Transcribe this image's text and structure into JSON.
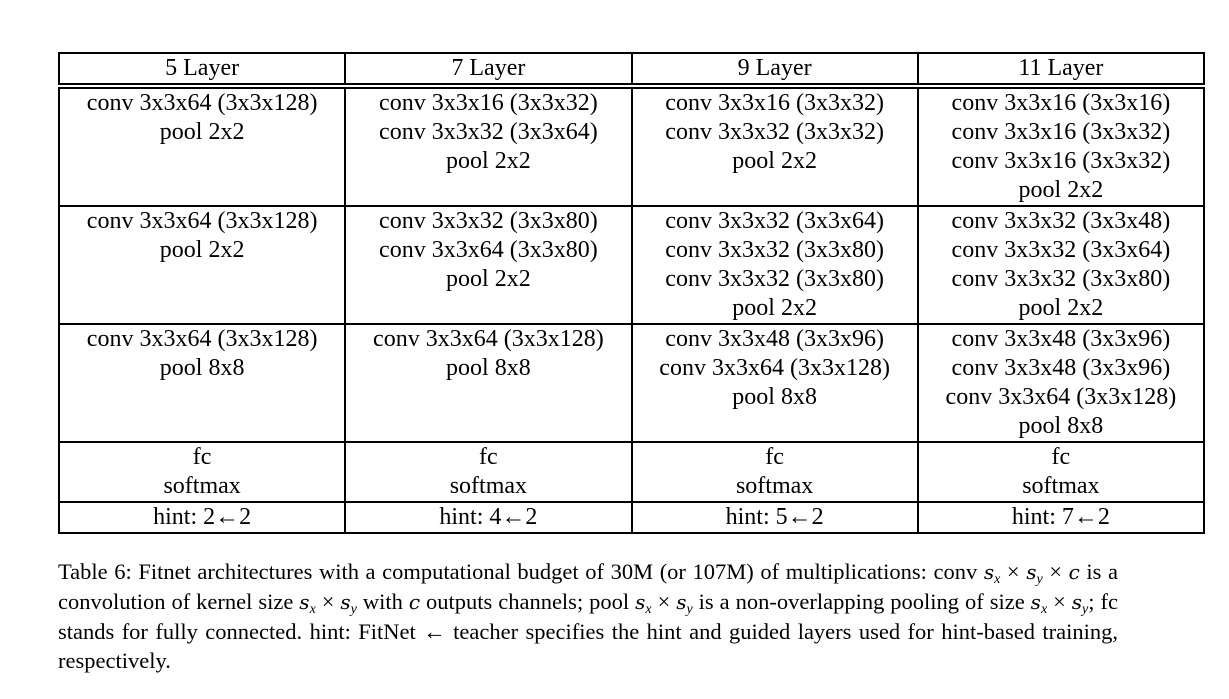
{
  "table": {
    "header": [
      "5 Layer",
      "7 Layer",
      "9 Layer",
      "11 Layer"
    ],
    "rows": [
      [
        [
          "conv 3x3x64 (3x3x128)",
          "pool 2x2"
        ],
        [
          "conv 3x3x16 (3x3x32)",
          "conv 3x3x32 (3x3x64)",
          "pool 2x2"
        ],
        [
          "conv 3x3x16 (3x3x32)",
          "conv 3x3x32 (3x3x32)",
          "pool 2x2"
        ],
        [
          "conv 3x3x16 (3x3x16)",
          "conv 3x3x16 (3x3x32)",
          "conv 3x3x16 (3x3x32)",
          "pool 2x2"
        ]
      ],
      [
        [
          "conv 3x3x64 (3x3x128)",
          "pool 2x2"
        ],
        [
          "conv 3x3x32 (3x3x80)",
          "conv 3x3x64 (3x3x80)",
          "pool 2x2"
        ],
        [
          "conv 3x3x32 (3x3x64)",
          "conv 3x3x32 (3x3x80)",
          "conv 3x3x32 (3x3x80)",
          "pool 2x2"
        ],
        [
          "conv 3x3x32 (3x3x48)",
          "conv 3x3x32 (3x3x64)",
          "conv 3x3x32 (3x3x80)",
          "pool 2x2"
        ]
      ],
      [
        [
          "conv 3x3x64 (3x3x128)",
          "pool 8x8"
        ],
        [
          "conv 3x3x64 (3x3x128)",
          "pool 8x8"
        ],
        [
          "conv 3x3x48 (3x3x96)",
          "conv 3x3x64 (3x3x128)",
          "pool 8x8"
        ],
        [
          "conv 3x3x48 (3x3x96)",
          "conv 3x3x48 (3x3x96)",
          "conv 3x3x64 (3x3x128)",
          "pool 8x8"
        ]
      ],
      [
        [
          "fc",
          "softmax"
        ],
        [
          "fc",
          "softmax"
        ],
        [
          "fc",
          "softmax"
        ],
        [
          "fc",
          "softmax"
        ]
      ],
      [
        [
          "hint: 2←2"
        ],
        [
          "hint: 4←2"
        ],
        [
          "hint: 5←2"
        ],
        [
          "hint: 7←2"
        ]
      ]
    ]
  },
  "caption": [
    {
      "text": "Table 6:  Fitnet architectures with a computational budget of 30M (or 107M) of multiplications: conv "
    },
    {
      "var": "s",
      "sub": "x"
    },
    {
      "op": " × "
    },
    {
      "var": "s",
      "sub": "y"
    },
    {
      "op": " × "
    },
    {
      "var": "c"
    },
    {
      "text": " is a convolution of kernel size "
    },
    {
      "var": "s",
      "sub": "x"
    },
    {
      "op": " × "
    },
    {
      "var": "s",
      "sub": "y"
    },
    {
      "text": " with "
    },
    {
      "var": "c"
    },
    {
      "text": " outputs channels; pool "
    },
    {
      "var": "s",
      "sub": "x"
    },
    {
      "op": " × "
    },
    {
      "var": "s",
      "sub": "y"
    },
    {
      "text": " is a non-overlapping pooling of size "
    },
    {
      "var": "s",
      "sub": "x"
    },
    {
      "op": " × "
    },
    {
      "var": "s",
      "sub": "y"
    },
    {
      "text": "; fc stands for fully connected. hint: FitNet ← teacher specifies the hint and guided layers used for hint-based training, respectively."
    }
  ]
}
